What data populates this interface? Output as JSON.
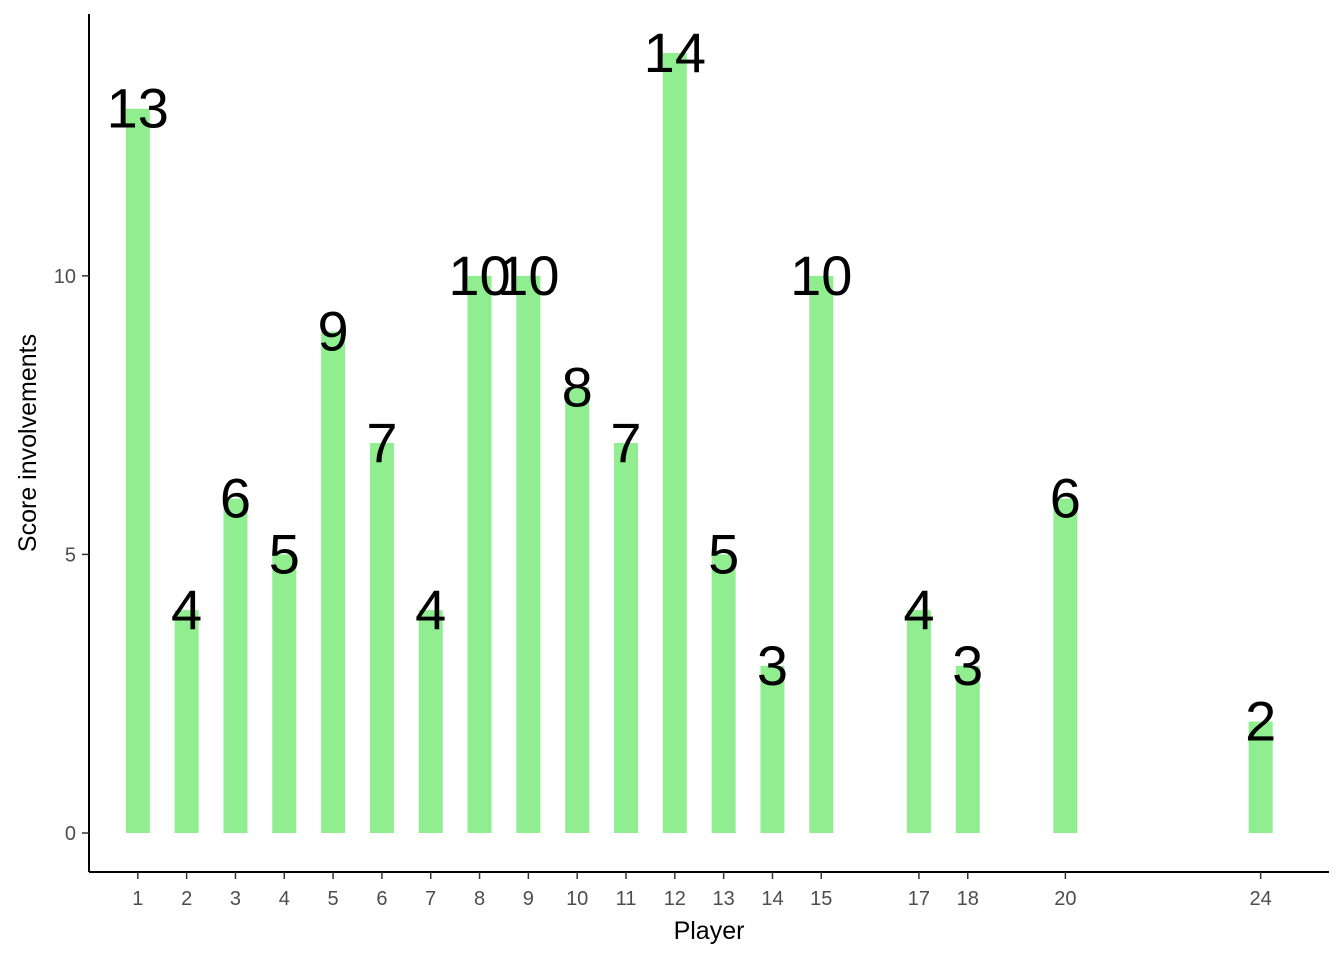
{
  "chart_data": {
    "type": "bar",
    "xlabel": "Player",
    "ylabel": "Score involvements",
    "x": [
      1,
      2,
      3,
      4,
      5,
      6,
      7,
      8,
      9,
      10,
      11,
      12,
      13,
      14,
      15,
      17,
      18,
      20,
      24
    ],
    "values": [
      13,
      4,
      6,
      5,
      9,
      7,
      4,
      10,
      10,
      8,
      7,
      14,
      5,
      3,
      10,
      4,
      3,
      6,
      2
    ],
    "data_labels": [
      "13",
      "4",
      "6",
      "5",
      "9",
      "7",
      "4",
      "10",
      "10",
      "8",
      "7",
      "14",
      "5",
      "3",
      "10",
      "4",
      "3",
      "6",
      "2"
    ],
    "x_tick_labels": [
      "1",
      "2",
      "3",
      "4",
      "5",
      "6",
      "7",
      "8",
      "9",
      "10",
      "11",
      "12",
      "13",
      "14",
      "15",
      "17",
      "18",
      "20",
      "24"
    ],
    "y_ticks": [
      0,
      5,
      10
    ],
    "y_tick_labels": [
      "0",
      "5",
      "10"
    ],
    "xlim": [
      0,
      25.4
    ],
    "ylim": [
      -0.7,
      14.7
    ],
    "bar_color": "#90EE90",
    "grid": false,
    "legend": "none"
  }
}
